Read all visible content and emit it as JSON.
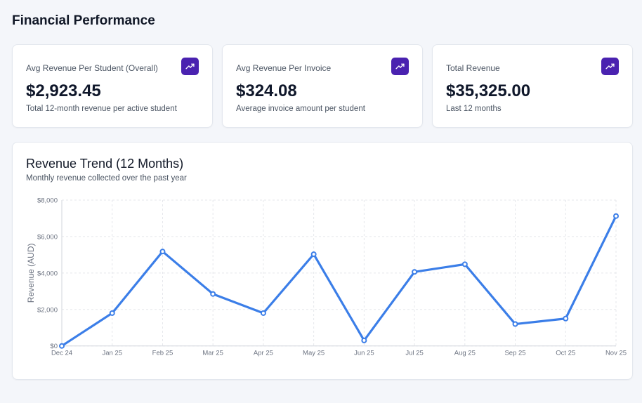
{
  "page": {
    "title": "Financial Performance"
  },
  "kpis": [
    {
      "label": "Avg Revenue Per Student (Overall)",
      "value": "$2,923.45",
      "sub": "Total 12-month revenue per active student",
      "icon": "trending-up-icon"
    },
    {
      "label": "Avg Revenue Per Invoice",
      "value": "$324.08",
      "sub": "Average invoice amount per student",
      "icon": "trending-up-icon"
    },
    {
      "label": "Total Revenue",
      "value": "$35,325.00",
      "sub": "Last 12 months",
      "icon": "trending-up-icon"
    }
  ],
  "colors": {
    "accent": "#4a22b0",
    "line": "#3b7ee8",
    "background": "#f4f6fa"
  },
  "chart_data": {
    "type": "line",
    "title": "Revenue Trend (12 Months)",
    "subtitle": "Monthly revenue collected over the past year",
    "xlabel": "",
    "ylabel": "Revenue (AUD)",
    "categories": [
      "Dec 24",
      "Jan 25",
      "Feb 25",
      "Mar 25",
      "Apr 25",
      "May 25",
      "Jun 25",
      "Jul 25",
      "Aug 25",
      "Sep 25",
      "Oct 25",
      "Nov 25"
    ],
    "values": [
      0,
      1800,
      5180,
      2850,
      1800,
      5030,
      300,
      4060,
      4480,
      1200,
      1500,
      7125
    ],
    "ylim": [
      0,
      8000
    ],
    "yticks": [
      0,
      2000,
      4000,
      6000,
      8000
    ],
    "ytick_labels": [
      "$0",
      "$2,000",
      "$4,000",
      "$6,000",
      "$8,000"
    ],
    "grid": true,
    "legend": "none"
  }
}
